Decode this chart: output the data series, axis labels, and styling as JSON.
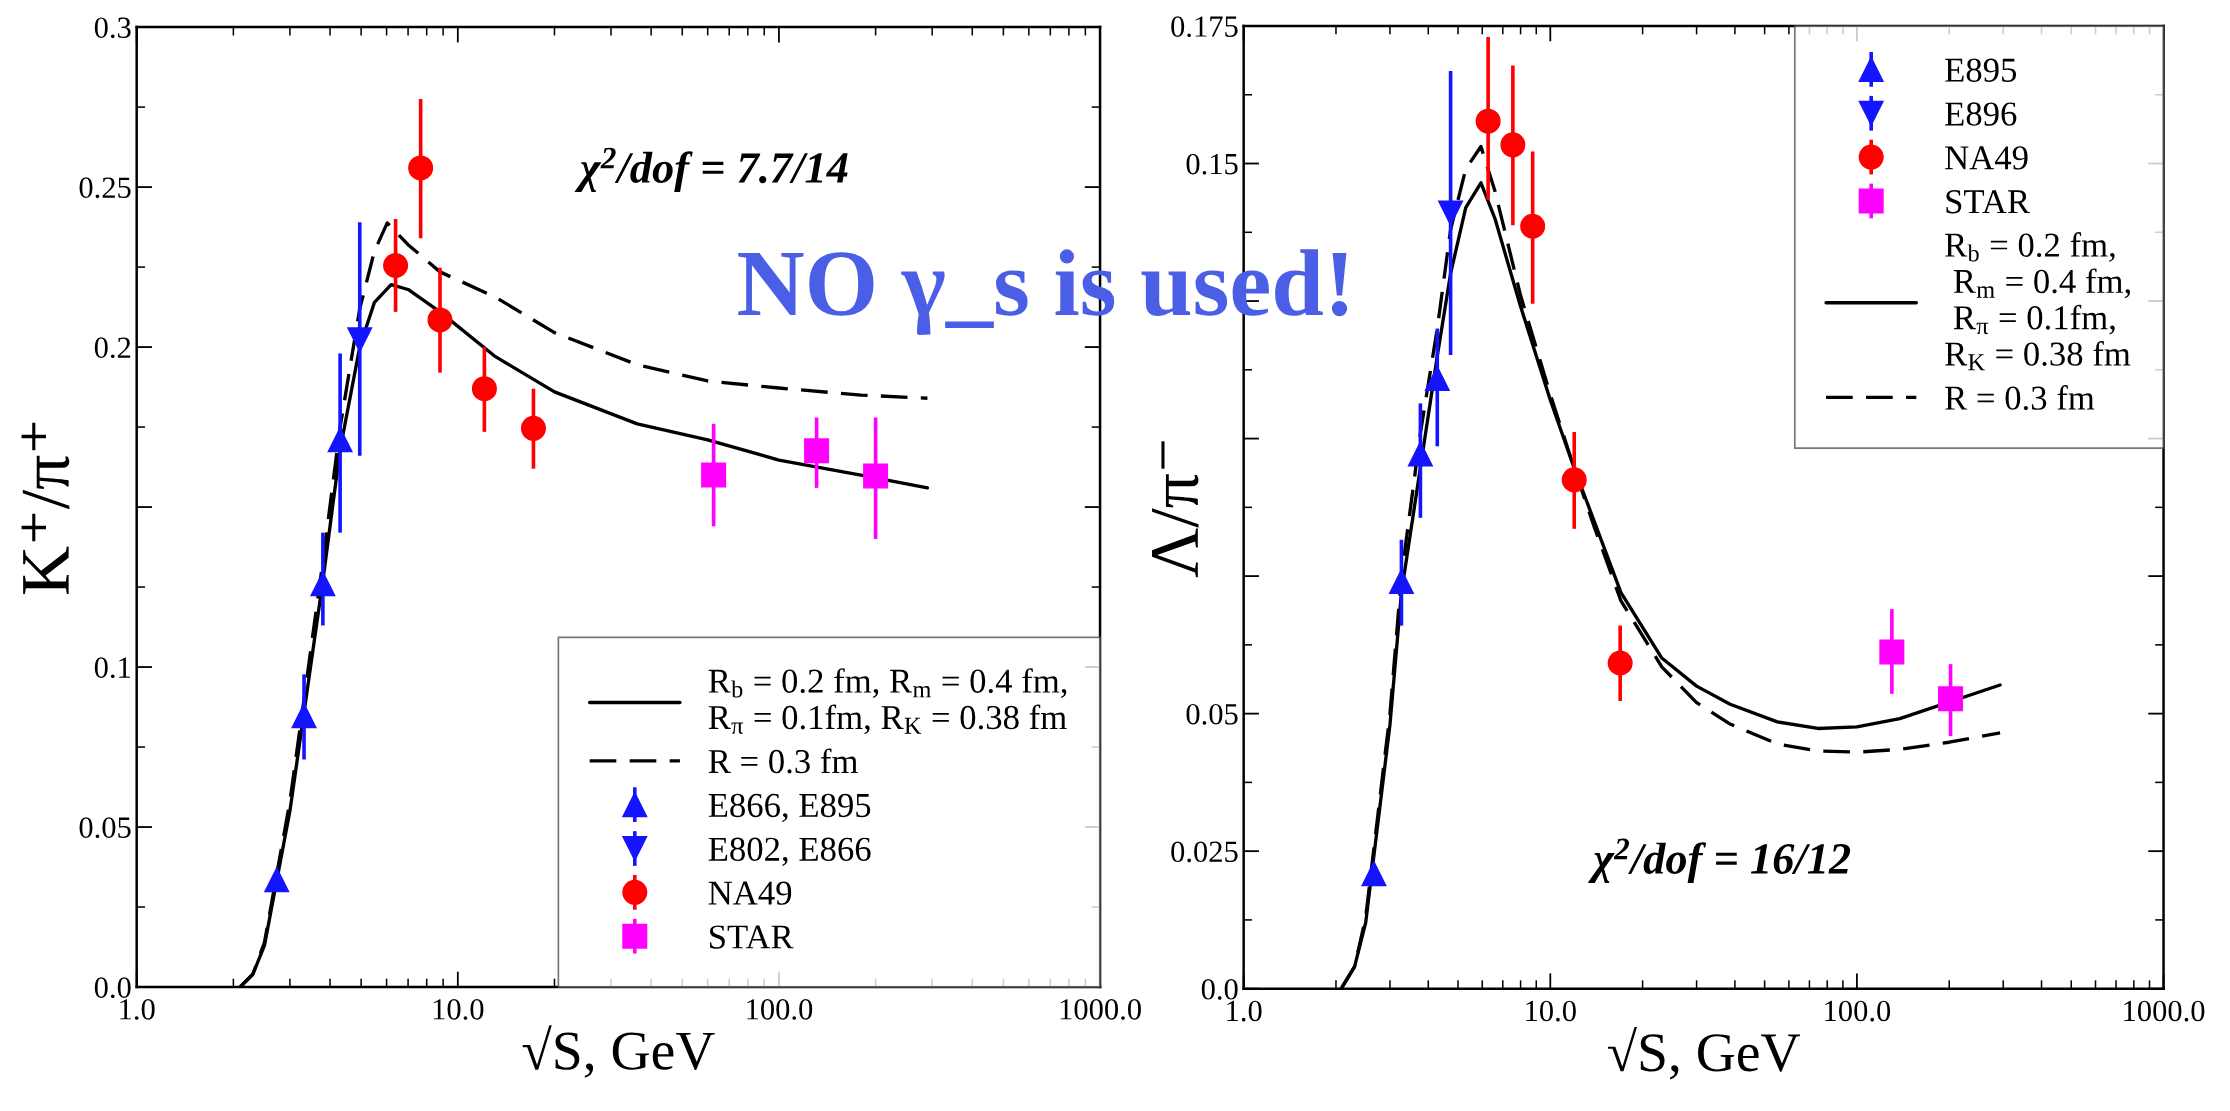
{
  "chart_data": [
    {
      "type": "scatter",
      "xlabel": "√S, GeV",
      "ylabel": "K⁺/π⁺",
      "log": "x",
      "xlim": [
        1,
        1000
      ],
      "xticks": [
        {
          "value": 1,
          "label": "1.0"
        },
        {
          "value": 10,
          "label": "10.0"
        },
        {
          "value": 100,
          "label": "100.0"
        },
        {
          "value": 1000,
          "label": "1000.0"
        }
      ],
      "ylim": [
        0,
        0.3
      ],
      "yticks": [
        {
          "value": 0,
          "label": "0.0"
        },
        0.05,
        0.1,
        {
          "value": 0.15,
          "label": null
        },
        0.2,
        0.25,
        0.3
      ],
      "grid": false,
      "legend": "bottom right",
      "annotations": [
        "χ$^{2}$/dof = 7.7/14",
        "NO γ_s is used!"
      ],
      "series": [
        {
          "type": "line",
          "name": "R$_{b}$ = 0.2 fm, R$_{m}$ = 0.4 fm,\nR$_{π}$ = 0.1fm, R$_{K}$ = 0.38 fm",
          "color": "#000000",
          "line_style": "solid",
          "marker": "none",
          "x": [
            2.1,
            2.3,
            2.5,
            3.0,
            3.8,
            4.3,
            4.95,
            5.5,
            6.2,
            7.0,
            8.8,
            13.1,
            20,
            36.2,
            60,
            100,
            180,
            290
          ],
          "values": [
            0,
            0.004,
            0.013,
            0.055,
            0.127,
            0.168,
            0.2,
            0.214,
            0.2195,
            0.218,
            0.211,
            0.197,
            0.186,
            0.176,
            0.171,
            0.1647,
            0.16,
            0.156
          ]
        },
        {
          "type": "line",
          "name": "R = 0.3 fm",
          "color": "#000000",
          "line_style": "dashed",
          "marker": "none",
          "x": [
            2.1,
            2.3,
            2.5,
            3.0,
            3.32,
            3.8,
            4.3,
            4.95,
            5.5,
            6.03,
            7.0,
            8.8,
            13.1,
            20,
            36.2,
            60,
            100,
            180,
            290
          ],
          "values": [
            0,
            0.004,
            0.014,
            0.058,
            0.09,
            0.133,
            0.175,
            0.212,
            0.23,
            0.2388,
            0.232,
            0.2235,
            0.2156,
            0.2045,
            0.1945,
            0.1894,
            0.1872,
            0.185,
            0.184
          ]
        },
        {
          "name": "E866, E895",
          "color": "#1414ff",
          "marker": "triangle",
          "x": [
            2.73,
            3.32,
            3.8,
            4.3
          ],
          "values": [
            0.0335,
            0.0848,
            0.126,
            0.171
          ],
          "errors": [
            null,
            [
              0.0711,
              0.0977
            ],
            [
              0.113,
              0.142
            ],
            [
              0.142,
              0.198
            ]
          ]
        },
        {
          "name": "E802, E866",
          "color": "#1414ff",
          "marker": "triangle-down",
          "x": [
            4.95
          ],
          "values": [
            0.2023
          ],
          "errors": [
            [
              0.166,
              0.239
            ]
          ]
        },
        {
          "name": "NA49",
          "color": "#ff0000",
          "marker": "circle",
          "x": [
            6.4,
            7.66,
            8.8,
            12.1,
            17.2
          ],
          "values": [
            0.2255,
            0.256,
            0.2085,
            0.187,
            0.1746
          ],
          "errors": [
            [
              0.211,
              0.24
            ],
            [
              0.234,
              0.2775
            ],
            [
              0.192,
              0.2248
            ],
            [
              0.1735,
              0.2
            ],
            [
              0.162,
              0.187
            ]
          ]
        },
        {
          "name": "STAR",
          "color": "#ff00ff",
          "marker": "square",
          "x": [
            62.6,
            131,
            200
          ],
          "values": [
            0.16,
            0.1676,
            0.1597
          ],
          "errors": [
            [
              0.144,
              0.176
            ],
            [
              0.156,
              0.178
            ],
            [
              0.14,
              0.178
            ]
          ]
        }
      ]
    },
    {
      "type": "scatter",
      "xlabel": "√S, GeV",
      "ylabel": "Λ/π⁻",
      "log": "x",
      "xlim": [
        1,
        1000
      ],
      "xticks": [
        {
          "value": 1,
          "label": "1.0"
        },
        {
          "value": 10,
          "label": "10.0"
        },
        {
          "value": 100,
          "label": "100.0"
        },
        {
          "value": 1000,
          "label": "1000.0"
        }
      ],
      "ylim": [
        0,
        0.175
      ],
      "yticks": [
        {
          "value": 0,
          "label": "0.0"
        },
        0.025,
        0.05,
        {
          "value": 0.075,
          "label": null
        },
        {
          "value": 0.1,
          "label": null
        },
        {
          "value": 0.125,
          "label": null
        },
        0.15,
        0.175
      ],
      "grid": false,
      "legend": "top right",
      "annotations": [
        "χ$^{2}$/dof = 16/12"
      ],
      "series": [
        {
          "name": "E895",
          "color": "#1414ff",
          "marker": "triangle",
          "x": [
            2.66,
            3.27,
            3.77,
            4.28
          ],
          "values": [
            0.0209,
            0.074,
            0.0972,
            0.1109
          ],
          "errors": [
            null,
            [
              0.066,
              0.0816
            ],
            [
              0.0856,
              0.1064
            ],
            [
              0.0986,
              0.12
            ]
          ]
        },
        {
          "name": "E896",
          "color": "#1414ff",
          "marker": "triangle-down",
          "x": [
            4.73
          ],
          "values": [
            0.141
          ],
          "errors": [
            [
              0.1152,
              0.1668
            ]
          ]
        },
        {
          "name": "NA49",
          "color": "#ff0000",
          "marker": "circle",
          "x": [
            6.27,
            7.55,
            8.76,
            11.97,
            16.9
          ],
          "values": [
            0.1577,
            0.1534,
            0.1386,
            0.0925,
            0.0592
          ],
          "errors": [
            [
              0.1434,
              0.173
            ],
            [
              0.1388,
              0.1678
            ],
            [
              0.1245,
              0.1522
            ],
            [
              0.0836,
              0.1012
            ],
            [
              0.0523,
              0.066
            ]
          ]
        },
        {
          "name": "STAR",
          "color": "#ff00ff",
          "marker": "square",
          "x": [
            130,
            202
          ],
          "values": [
            0.0612,
            0.0527
          ],
          "errors": [
            [
              0.0536,
              0.069
            ],
            [
              0.0459,
              0.059
            ]
          ]
        },
        {
          "type": "line",
          "name": "R$_{b}$ = 0.2 fm,\n R$_{m}$ = 0.4 fm,\n R$_{π}$ = 0.1fm,\nR$_{K}$ = 0.38 fm",
          "color": "#000000",
          "line_style": "solid",
          "marker": "none",
          "x": [
            2.08,
            2.3,
            2.5,
            3.0,
            3.27,
            4.28,
            4.73,
            5.3,
            5.94,
            6.6,
            8.0,
            10,
            11.97,
            13.9,
            17,
            23.1,
            30,
            38.6,
            55,
            74.6,
            100,
            138,
            293
          ],
          "values": [
            0,
            0.004,
            0.012,
            0.048,
            0.072,
            0.115,
            0.13,
            0.142,
            0.1465,
            0.14,
            0.124,
            0.107,
            0.0946,
            0.085,
            0.072,
            0.0601,
            0.055,
            0.0517,
            0.0485,
            0.0473,
            0.0476,
            0.0491,
            0.0552
          ]
        },
        {
          "type": "line",
          "name": "R = 0.3 fm",
          "color": "#000000",
          "line_style": "dashed",
          "marker": "none",
          "x": [
            2.08,
            2.3,
            2.5,
            3.0,
            3.27,
            3.77,
            4.28,
            4.73,
            5.3,
            5.94,
            6.6,
            8.0,
            10,
            11.97,
            13.9,
            17,
            23.1,
            30,
            38.6,
            55,
            74.6,
            100,
            138,
            200,
            293
          ],
          "values": [
            0,
            0.004,
            0.013,
            0.05,
            0.075,
            0.101,
            0.12,
            0.138,
            0.149,
            0.1531,
            0.145,
            0.126,
            0.108,
            0.0946,
            0.084,
            0.0705,
            0.0585,
            0.052,
            0.0481,
            0.0445,
            0.0432,
            0.043,
            0.0435,
            0.0448,
            0.0465
          ]
        }
      ]
    }
  ]
}
